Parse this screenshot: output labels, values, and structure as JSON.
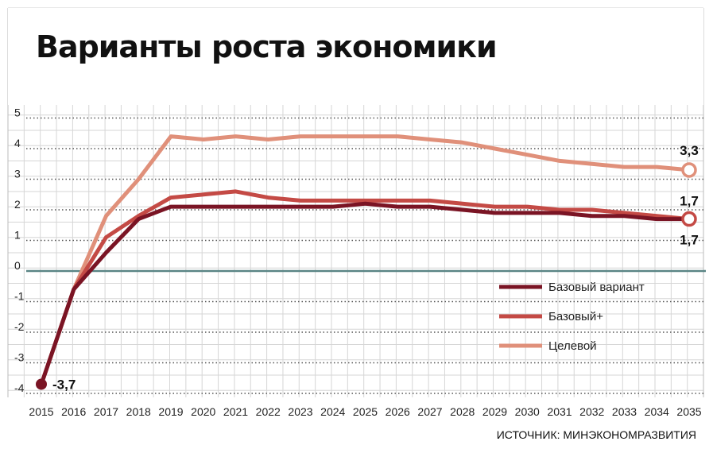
{
  "chart_data": {
    "type": "line",
    "title": "Варианты роста экономики",
    "source": "ИСТОЧНИК: МИНЭКОНОМРАЗВИТИЯ",
    "xlabel": "",
    "ylabel": "",
    "x": [
      "2015",
      "2016",
      "2017",
      "2018",
      "2019",
      "2020",
      "2021",
      "2022",
      "2023",
      "2024",
      "2025",
      "2026",
      "2027",
      "2028",
      "2029",
      "2030",
      "2031",
      "2032",
      "2033",
      "2034",
      "2035"
    ],
    "y_ticks": [
      "5",
      "4",
      "3",
      "2",
      "1",
      "0",
      "-1",
      "-2",
      "-3",
      "-4"
    ],
    "ylim": [
      -4,
      5
    ],
    "grid": true,
    "legend_position": "bottom-right",
    "series": [
      {
        "name": "Базовый вариант",
        "color": "#7a1424",
        "values": [
          -3.7,
          -0.6,
          0.6,
          1.7,
          2.1,
          2.1,
          2.1,
          2.1,
          2.1,
          2.1,
          2.2,
          2.1,
          2.1,
          2.0,
          1.9,
          1.9,
          1.9,
          1.8,
          1.8,
          1.7,
          1.7
        ]
      },
      {
        "name": "Базовый+",
        "color": "#c44a45",
        "values": [
          -3.7,
          -0.6,
          1.1,
          1.8,
          2.4,
          2.5,
          2.6,
          2.4,
          2.3,
          2.3,
          2.3,
          2.3,
          2.3,
          2.2,
          2.1,
          2.1,
          2.0,
          2.0,
          1.9,
          1.8,
          1.7
        ]
      },
      {
        "name": "Целевой",
        "color": "#e0907a",
        "values": [
          -3.7,
          -0.6,
          1.8,
          3.0,
          4.4,
          4.3,
          4.4,
          4.3,
          4.4,
          4.4,
          4.4,
          4.4,
          4.3,
          4.2,
          4.0,
          3.8,
          3.6,
          3.5,
          3.4,
          3.4,
          3.3
        ]
      }
    ],
    "annotations": [
      {
        "label": "-3,7",
        "series": 0,
        "index": 0
      },
      {
        "label": "3,3",
        "series": 2,
        "index": 20
      },
      {
        "label": "1,7",
        "series": 1,
        "index": 20
      },
      {
        "label": "1,7",
        "series": 0,
        "index": 20
      }
    ]
  }
}
